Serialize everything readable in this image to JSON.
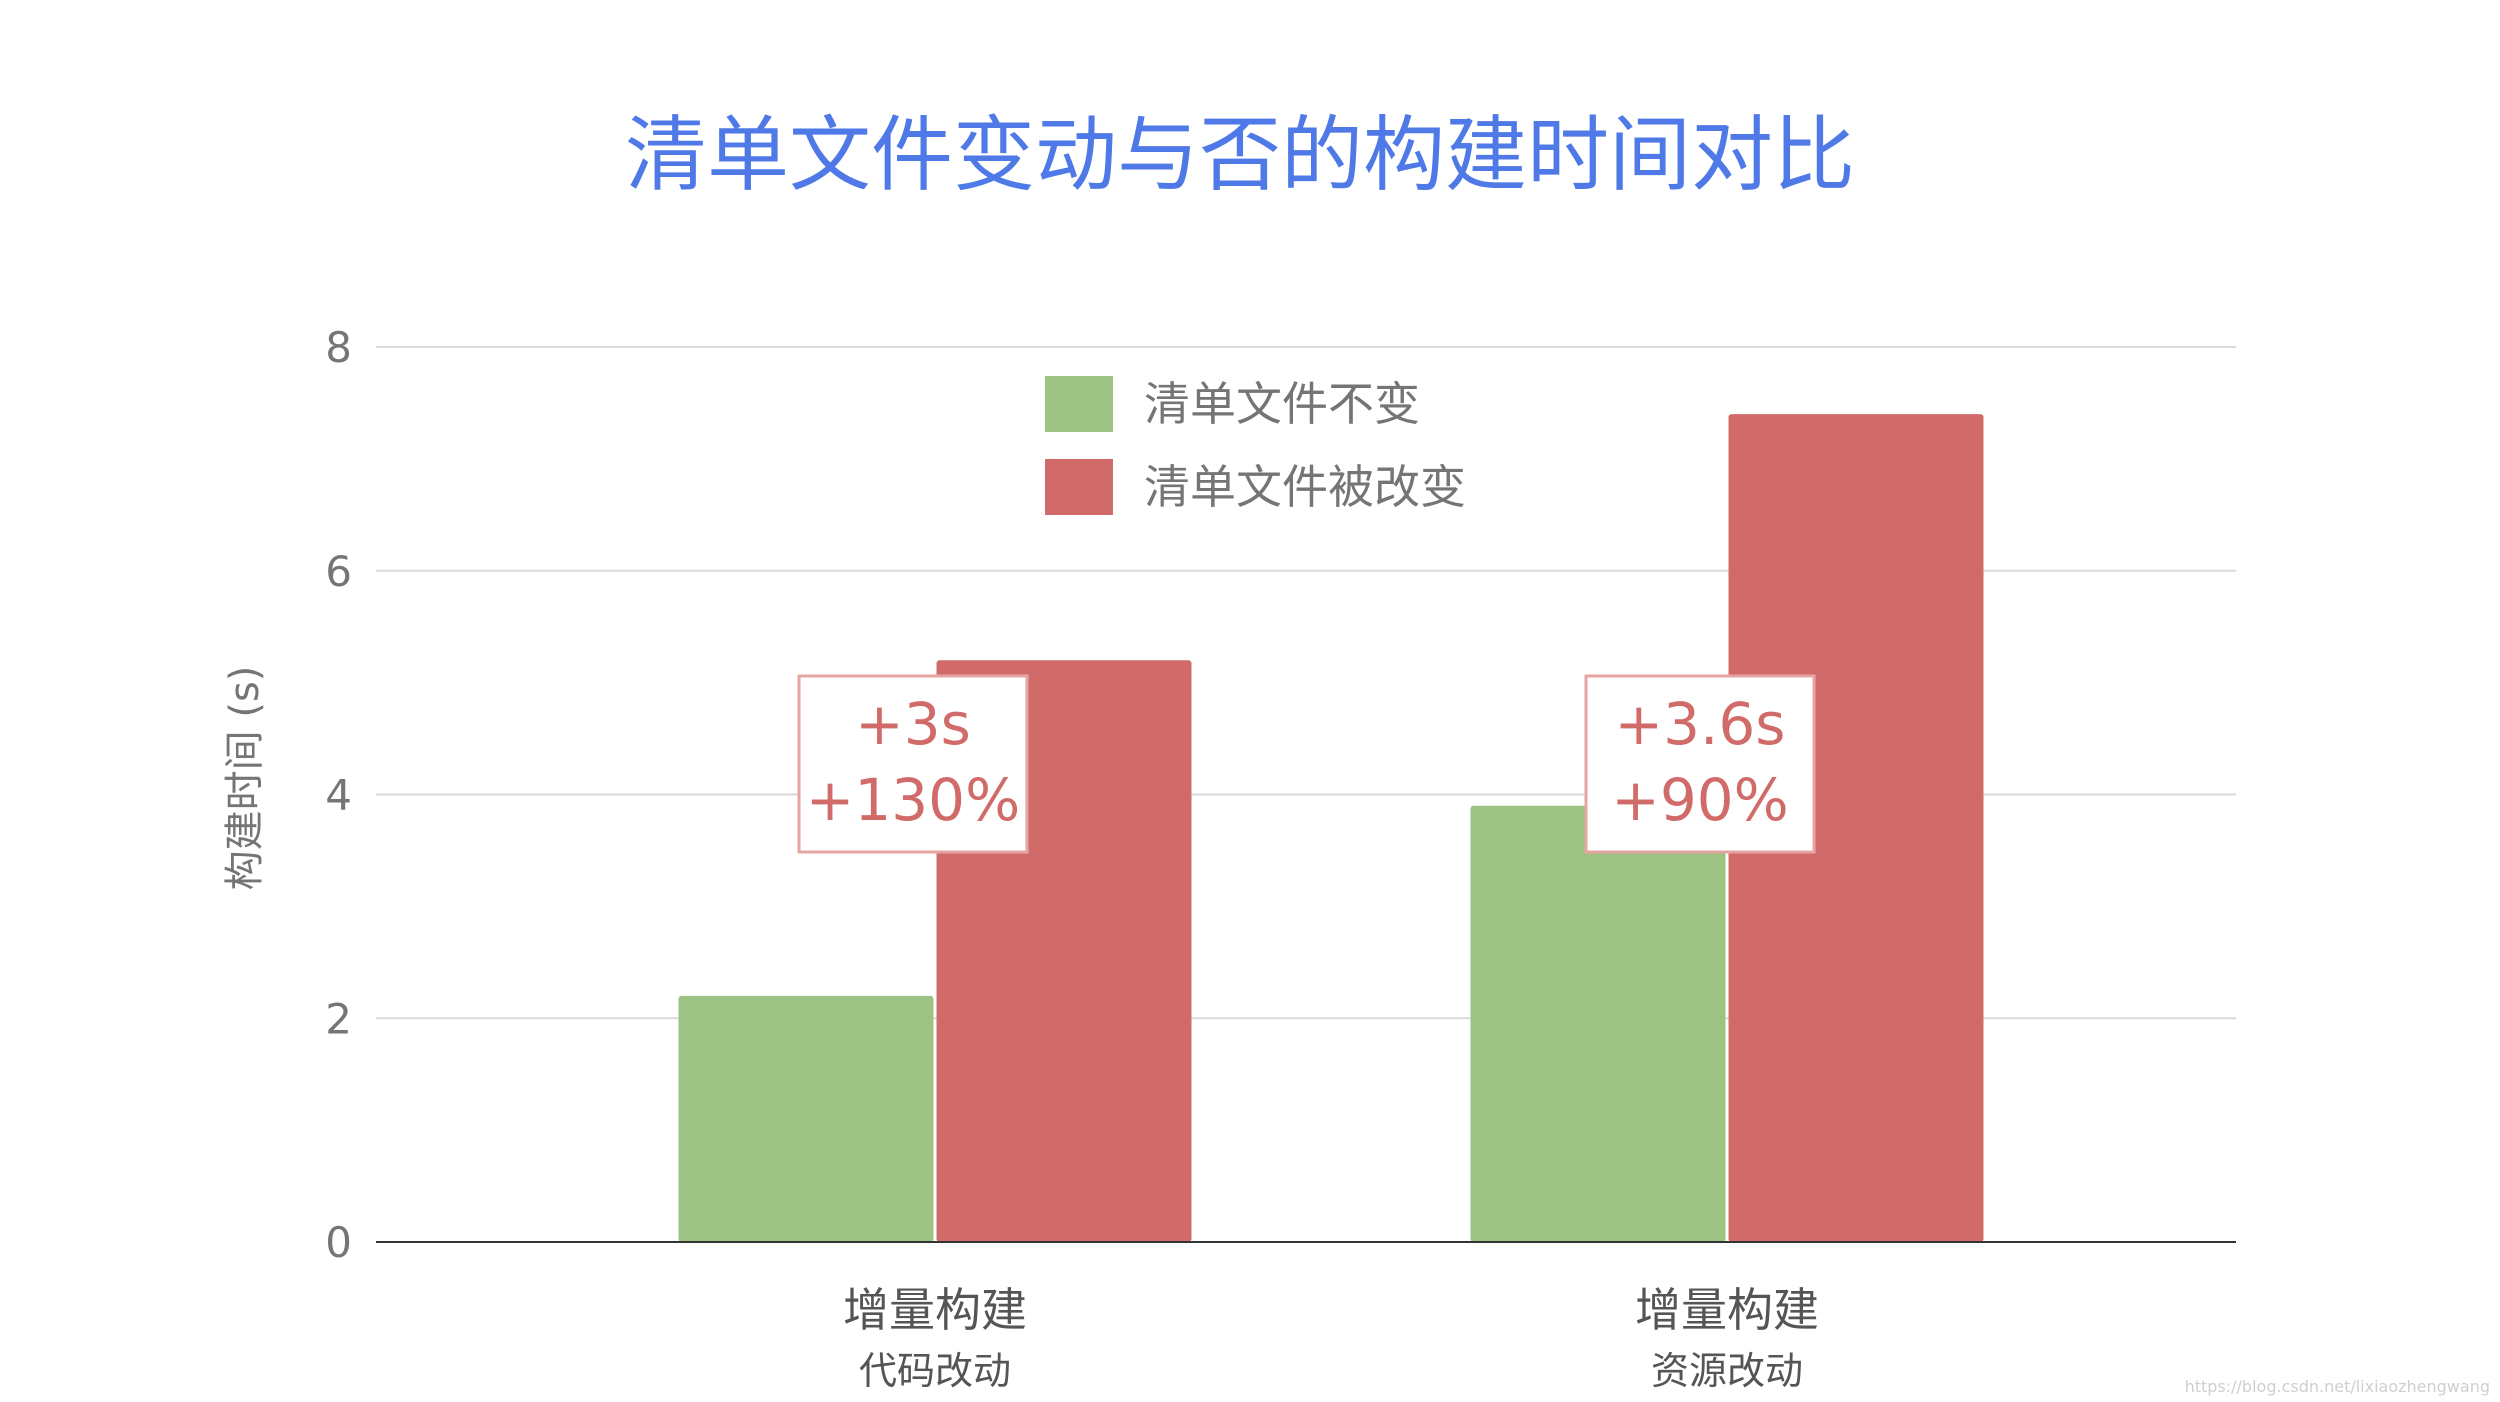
{
  "chart_data": {
    "type": "bar",
    "title": "清单文件变动与否的构建时间对比",
    "xlabel": "",
    "ylabel": "构建时间 (s)",
    "ylim": [
      0,
      8
    ],
    "yticks": [
      "0",
      "2",
      "4",
      "6",
      "8"
    ],
    "grid": true,
    "legend_position": "top-center",
    "categories": [
      {
        "label": "增量构建",
        "sublabel": "代码改动"
      },
      {
        "label": "增量构建",
        "sublabel": "资源改动"
      }
    ],
    "series": [
      {
        "name": "清单文件不变",
        "color": "#9dc384",
        "values": [
          2.2,
          3.9
        ]
      },
      {
        "name": "清单文件被改变",
        "color": "#d16b69",
        "values": [
          5.2,
          7.4
        ]
      }
    ],
    "annotations": [
      {
        "category_index": 0,
        "lines": [
          "+3s",
          "+130%"
        ]
      },
      {
        "category_index": 1,
        "lines": [
          "+3.6s",
          "+90%"
        ]
      }
    ]
  },
  "colors": {
    "title": "#4f79e6",
    "axis_text": "#757575",
    "grid": "#d9d9d9",
    "baseline": "#333333",
    "annotation": "#d16b69",
    "annotation_border": "#e6a4a3"
  },
  "watermark": "https://blog.csdn.net/lixiaozhengwang"
}
